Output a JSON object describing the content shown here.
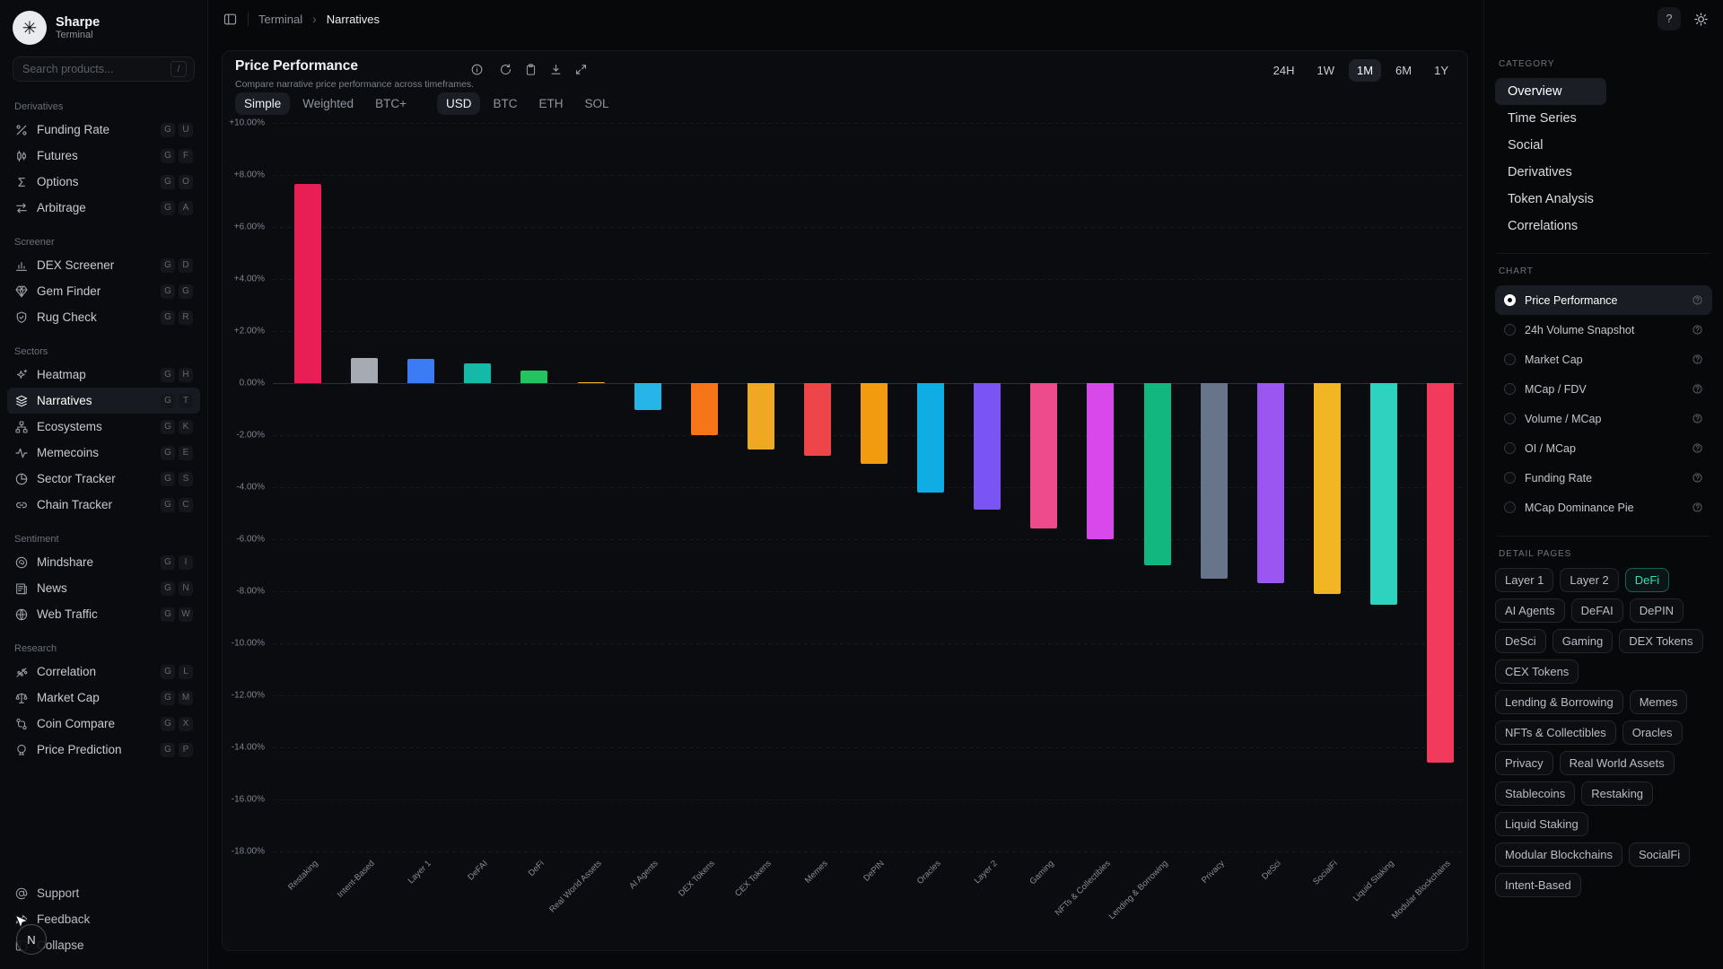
{
  "app": {
    "name": "Sharpe",
    "subtitle": "Terminal"
  },
  "search": {
    "placeholder": "Search products...",
    "shortcut": "/"
  },
  "header": {
    "breadcrumb": [
      "Terminal",
      "Narratives"
    ],
    "help_label": "?"
  },
  "sidebar": {
    "sections": [
      {
        "label": "Derivatives",
        "items": [
          {
            "label": "Funding Rate",
            "icon": "percent",
            "keys": [
              "G",
              "U"
            ]
          },
          {
            "label": "Futures",
            "icon": "candle",
            "keys": [
              "G",
              "F"
            ]
          },
          {
            "label": "Options",
            "icon": "sigma",
            "keys": [
              "G",
              "O"
            ]
          },
          {
            "label": "Arbitrage",
            "icon": "swap",
            "keys": [
              "G",
              "A"
            ]
          }
        ]
      },
      {
        "label": "Screener",
        "items": [
          {
            "label": "DEX Screener",
            "icon": "bars",
            "keys": [
              "G",
              "D"
            ]
          },
          {
            "label": "Gem Finder",
            "icon": "gem",
            "keys": [
              "G",
              "G"
            ]
          },
          {
            "label": "Rug Check",
            "icon": "shield",
            "keys": [
              "G",
              "R"
            ]
          }
        ]
      },
      {
        "label": "Sectors",
        "items": [
          {
            "label": "Heatmap",
            "icon": "sparkle",
            "keys": [
              "G",
              "H"
            ]
          },
          {
            "label": "Narratives",
            "icon": "layers",
            "keys": [
              "G",
              "T"
            ],
            "active": true
          },
          {
            "label": "Ecosystems",
            "icon": "tree",
            "keys": [
              "G",
              "K"
            ]
          },
          {
            "label": "Memecoins",
            "icon": "pulse",
            "keys": [
              "G",
              "E"
            ]
          },
          {
            "label": "Sector Tracker",
            "icon": "pie",
            "keys": [
              "G",
              "S"
            ]
          },
          {
            "label": "Chain Tracker",
            "icon": "link",
            "keys": [
              "G",
              "C"
            ]
          }
        ]
      },
      {
        "label": "Sentiment",
        "items": [
          {
            "label": "Mindshare",
            "icon": "brain",
            "keys": [
              "G",
              "I"
            ]
          },
          {
            "label": "News",
            "icon": "news",
            "keys": [
              "G",
              "N"
            ]
          },
          {
            "label": "Web Traffic",
            "icon": "globe",
            "keys": [
              "G",
              "W"
            ]
          }
        ]
      },
      {
        "label": "Research",
        "items": [
          {
            "label": "Correlation",
            "icon": "scatter",
            "keys": [
              "G",
              "L"
            ]
          },
          {
            "label": "Market Cap",
            "icon": "scale",
            "keys": [
              "G",
              "M"
            ]
          },
          {
            "label": "Coin Compare",
            "icon": "compare",
            "keys": [
              "G",
              "X"
            ]
          },
          {
            "label": "Price Prediction",
            "icon": "crystal",
            "keys": [
              "G",
              "P"
            ]
          }
        ]
      }
    ],
    "footer": [
      {
        "label": "Support",
        "icon": "at"
      },
      {
        "label": "Feedback",
        "icon": "share"
      },
      {
        "label": "Collapse",
        "icon": "panel"
      }
    ]
  },
  "chart_card": {
    "title": "Price Performance",
    "subtitle": "Compare narrative price performance across timeframes.",
    "toolbar_icons": [
      "info",
      "refresh",
      "clipboard",
      "download",
      "expand"
    ],
    "timeframes": {
      "options": [
        "24H",
        "1W",
        "1M",
        "6M",
        "1Y"
      ],
      "active": "1M"
    },
    "mode_tabs": {
      "options": [
        "Simple",
        "Weighted",
        "BTC+"
      ],
      "active": "Simple"
    },
    "denom_tabs": {
      "options": [
        "USD",
        "BTC",
        "ETH",
        "SOL"
      ],
      "active": "USD"
    }
  },
  "chart_data": {
    "type": "bar",
    "title": "Price Performance",
    "timeframe": "1M",
    "unit": "%",
    "ylim": [
      -18,
      10
    ],
    "ytick_step": 2,
    "grid": true,
    "categories": [
      "Restaking",
      "Intent-Based",
      "Layer 1",
      "DeFAI",
      "DeFi",
      "Real World Assets",
      "AI Agents",
      "DEX Tokens",
      "CEX Tokens",
      "Memes",
      "DePIN",
      "Oracles",
      "Layer 2",
      "Gaming",
      "NFTs & Collectibles",
      "Lending & Borrowing",
      "Privacy",
      "DeSci",
      "SocialFi",
      "Liquid Staking",
      "Modular Blockchains"
    ],
    "values": [
      7.65,
      0.95,
      0.92,
      0.75,
      0.5,
      0.05,
      -1.05,
      -2.0,
      -2.55,
      -2.8,
      -3.1,
      -4.2,
      -4.85,
      -5.6,
      -6.0,
      -7.0,
      -7.5,
      -7.7,
      -8.1,
      -8.5,
      -14.6
    ],
    "colors": [
      "#e81e55",
      "#a6abb3",
      "#3b7cf5",
      "#15b9a7",
      "#23c45f",
      "#f3b32b",
      "#27b4e8",
      "#f57518",
      "#f0a822",
      "#ee4549",
      "#f29a10",
      "#10ace4",
      "#7b55f3",
      "#ee4b8d",
      "#d948ea",
      "#12b77f",
      "#68748a",
      "#9b55f0",
      "#f2b524",
      "#2dd3bf",
      "#f23a5c"
    ],
    "patterns": [
      "solid",
      "dots",
      "solid",
      "solid",
      "solid",
      "solid",
      "dots",
      "solid",
      "hatch",
      "solid",
      "solid",
      "solid",
      "solid",
      "solid",
      "solid",
      "solid",
      "solid",
      "solid",
      "solid",
      "solid",
      "solid"
    ]
  },
  "right_panel": {
    "category": {
      "label": "CATEGORY",
      "items": [
        {
          "label": "Overview",
          "active": true
        },
        {
          "label": "Time Series"
        },
        {
          "label": "Social"
        },
        {
          "label": "Derivatives"
        },
        {
          "label": "Token Analysis"
        },
        {
          "label": "Correlations"
        }
      ]
    },
    "chart": {
      "label": "CHART",
      "items": [
        {
          "label": "Price Performance",
          "active": true
        },
        {
          "label": "24h Volume Snapshot"
        },
        {
          "label": "Market Cap"
        },
        {
          "label": "MCap / FDV"
        },
        {
          "label": "Volume / MCap"
        },
        {
          "label": "OI / MCap"
        },
        {
          "label": "Funding Rate"
        },
        {
          "label": "MCap Dominance Pie"
        }
      ]
    },
    "detail_pages": {
      "label": "DETAIL PAGES",
      "active": "DeFi",
      "items": [
        "Layer 1",
        "Layer 2",
        "DeFi",
        "AI Agents",
        "DeFAI",
        "DePIN",
        "DeSci",
        "Gaming",
        "DEX Tokens",
        "CEX Tokens",
        "Lending & Borrowing",
        "Memes",
        "NFTs & Collectibles",
        "Oracles",
        "Privacy",
        "Real World Assets",
        "Stablecoins",
        "Restaking",
        "Liquid Staking",
        "Modular Blockchains",
        "SocialFi",
        "Intent-Based"
      ]
    }
  },
  "cursor": {
    "label": "N"
  }
}
